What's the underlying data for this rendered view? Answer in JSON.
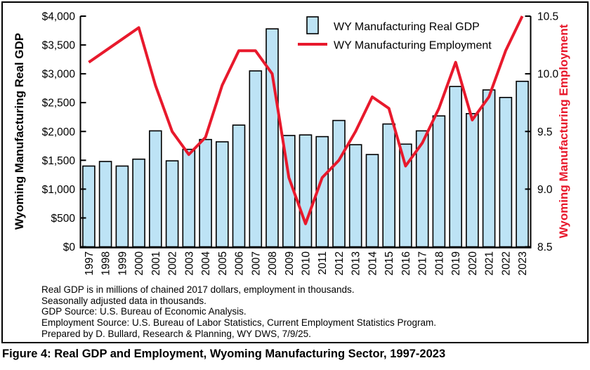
{
  "figure": {
    "caption": "Figure 4: Real GDP and Employment, Wyoming Manufacturing Sector, 1997-2023"
  },
  "notes": [
    "Real GDP is in millions of chained 2017 dollars, employment in thousands.",
    "Seasonally adjusted data in thousands.",
    "GDP Source: U.S. Bureau of Economic Analysis.",
    "Employment Source: U.S. Bureau of Labor Statistics, Current Employment Statistics Program.",
    "Prepared by D. Bullard, Research & Planning, WY DWS, 7/9/25."
  ],
  "chart_data": {
    "type": "combo",
    "categories": [
      "1997",
      "1998",
      "1999",
      "2000",
      "2001",
      "2002",
      "2003",
      "2004",
      "2005",
      "2006",
      "2007",
      "2008",
      "2009",
      "2010",
      "2011",
      "2012",
      "2013",
      "2014",
      "2015",
      "2016",
      "2017",
      "2018",
      "2019",
      "2020",
      "2021",
      "2022",
      "2023"
    ],
    "series": [
      {
        "name": "WY Manufacturing Real GDP",
        "type": "bar",
        "axis": "left",
        "color": "#BDE3F5",
        "border_color": "#000000",
        "values": [
          1400,
          1480,
          1400,
          1520,
          2010,
          1490,
          1690,
          1860,
          1820,
          2110,
          3050,
          3780,
          1930,
          1940,
          1910,
          2190,
          1770,
          1600,
          2130,
          1780,
          2010,
          2270,
          2780,
          2310,
          2720,
          2590,
          2870
        ]
      },
      {
        "name": "WY Manufacturing Employment",
        "type": "line",
        "axis": "right",
        "color": "#E8192C",
        "values": [
          10.1,
          10.2,
          10.3,
          10.4,
          9.9,
          9.5,
          9.3,
          9.45,
          9.9,
          10.2,
          10.2,
          10.0,
          9.1,
          8.7,
          9.1,
          9.25,
          9.5,
          9.8,
          9.7,
          9.2,
          9.4,
          9.7,
          10.1,
          9.6,
          9.8,
          10.2,
          10.5
        ]
      }
    ],
    "left_axis": {
      "title": "Wyoming Manufacturing Real GDP",
      "title_color": "#000000",
      "min": 0,
      "max": 4000,
      "step": 500,
      "tick_labels": [
        "$4,000",
        "$3,500",
        "$3,000",
        "$2,500",
        "$2,000",
        "$1,500",
        "$1,000",
        "$500",
        "$0"
      ]
    },
    "right_axis": {
      "title": "Wyoming Manufacturing Employment",
      "title_color": "#E8192C",
      "min": 8.5,
      "max": 10.5,
      "step": 0.5,
      "tick_labels": [
        "10.5",
        "10.0",
        "9.5",
        "9.0",
        "8.5"
      ]
    },
    "legend": {
      "position": "top-center-inside",
      "entries": [
        "WY Manufacturing Real GDP",
        "WY Manufacturing Employment"
      ]
    },
    "grid": false
  }
}
